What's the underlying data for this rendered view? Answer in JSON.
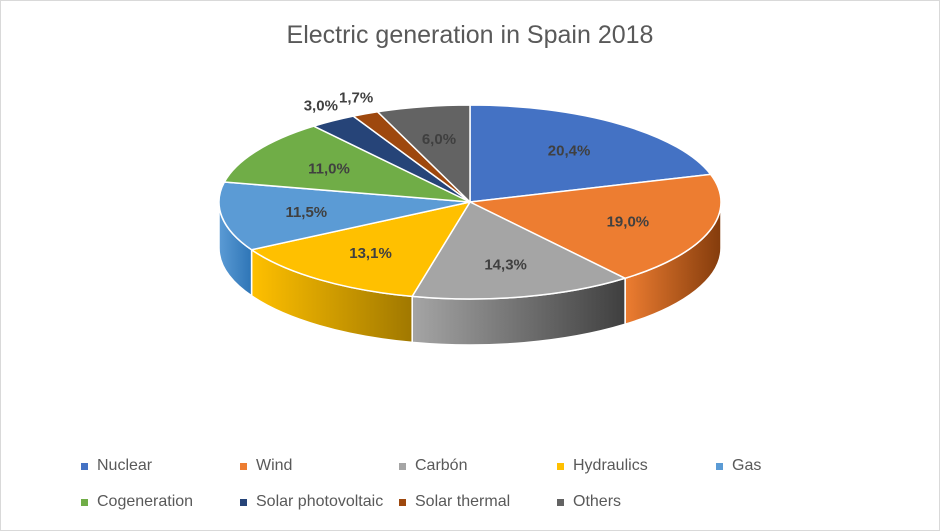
{
  "chart_data": {
    "type": "pie",
    "title": "Electric generation in Spain 2018",
    "legend_position": "bottom",
    "style": "3d",
    "slices": [
      {
        "name": "Nuclear",
        "label": "20,4%",
        "value": 20.4,
        "color": "#4472c4",
        "side_color": "#2f5597"
      },
      {
        "name": "Wind",
        "label": "19,0%",
        "value": 19.0,
        "color": "#ed7d31",
        "side_color": "#843c0c"
      },
      {
        "name": "Carbón",
        "label": "14,3%",
        "value": 14.3,
        "color": "#a5a5a5",
        "side_color": "#3f3f3f"
      },
      {
        "name": "Hydraulics",
        "label": "13,1%",
        "value": 13.1,
        "color": "#ffc000",
        "side_color": "#a07800"
      },
      {
        "name": "Gas",
        "label": "11,5%",
        "value": 11.5,
        "color": "#5b9bd5",
        "side_color": "#2e75b6"
      },
      {
        "name": "Cogeneration",
        "label": "11,0%",
        "value": 11.0,
        "color": "#70ad47",
        "side_color": "#385723"
      },
      {
        "name": "Solar photovoltaic",
        "label": "3,0%",
        "value": 3.0,
        "color": "#264478",
        "side_color": "#172a4a"
      },
      {
        "name": "Solar thermal",
        "label": "1,7%",
        "value": 1.7,
        "color": "#9e480e",
        "side_color": "#5e2a08"
      },
      {
        "name": "Others",
        "label": "6,0%",
        "value": 6.0,
        "color": "#636363",
        "side_color": "#363636"
      }
    ]
  }
}
